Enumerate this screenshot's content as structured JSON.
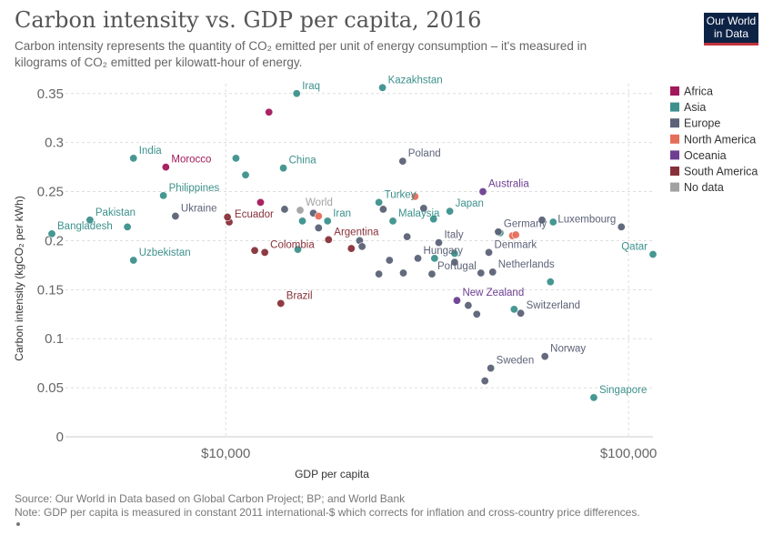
{
  "header": {
    "title": "Carbon intensity vs. GDP per capita, 2016",
    "subtitle": "Carbon intensity represents the quantity of CO₂ emitted per unit of energy consumption – it's measured in kilograms of CO₂ emitted per kilowatt-hour of energy.",
    "logo_line1": "Our World",
    "logo_line2": "in Data"
  },
  "footer": {
    "source": "Source: Our World in Data based on Global Carbon Project; BP; and World Bank",
    "note": "Note: GDP per capita is measured in constant 2011 international-$ which corrects for inflation and cross-country price differences."
  },
  "chart_data": {
    "type": "scatter",
    "title": "Carbon intensity vs. GDP per capita, 2016",
    "xlabel": "GDP per capita",
    "ylabel": "Carbon intensity (kgCO₂ per kWh)",
    "x_scale": "log",
    "xlim": [
      4000,
      115000
    ],
    "ylim": [
      0,
      0.36
    ],
    "x_ticks": [
      {
        "value": 10000,
        "label": "$10,000"
      },
      {
        "value": 100000,
        "label": "$100,000"
      }
    ],
    "y_ticks": [
      {
        "value": 0,
        "label": "0"
      },
      {
        "value": 0.05,
        "label": "0.05"
      },
      {
        "value": 0.1,
        "label": "0.1"
      },
      {
        "value": 0.15,
        "label": "0.15"
      },
      {
        "value": 0.2,
        "label": "0.2"
      },
      {
        "value": 0.25,
        "label": "0.25"
      },
      {
        "value": 0.3,
        "label": "0.3"
      },
      {
        "value": 0.35,
        "label": "0.35"
      }
    ],
    "grid": true,
    "legend_position": "right",
    "series": [
      {
        "name": "Africa",
        "color": "#a2195b",
        "points": [
          {
            "x": 7100,
            "y": 0.275,
            "label": "Morocco"
          },
          {
            "x": 12800,
            "y": 0.331
          },
          {
            "x": 12200,
            "y": 0.239
          }
        ]
      },
      {
        "name": "Asia",
        "color": "#3c918c",
        "points": [
          {
            "x": 15000,
            "y": 0.35,
            "label": "Iraq"
          },
          {
            "x": 24500,
            "y": 0.356,
            "label": "Kazakhstan"
          },
          {
            "x": 5900,
            "y": 0.284,
            "label": "India"
          },
          {
            "x": 10600,
            "y": 0.284
          },
          {
            "x": 11200,
            "y": 0.267
          },
          {
            "x": 13900,
            "y": 0.274,
            "label": "China"
          },
          {
            "x": 7000,
            "y": 0.246,
            "label": "Philippines"
          },
          {
            "x": 24000,
            "y": 0.239,
            "label": "Turkey"
          },
          {
            "x": 36000,
            "y": 0.23,
            "label": "Japan"
          },
          {
            "x": 15500,
            "y": 0.22
          },
          {
            "x": 17900,
            "y": 0.22,
            "label": "Iran"
          },
          {
            "x": 26000,
            "y": 0.22,
            "label": "Malaysia"
          },
          {
            "x": 32800,
            "y": 0.222
          },
          {
            "x": 4600,
            "y": 0.221,
            "label": "Pakistan"
          },
          {
            "x": 5700,
            "y": 0.214
          },
          {
            "x": 3700,
            "y": 0.207,
            "label": "Bangladesh"
          },
          {
            "x": 5900,
            "y": 0.18,
            "label": "Uzbekistan"
          },
          {
            "x": 15100,
            "y": 0.191
          },
          {
            "x": 37000,
            "y": 0.187
          },
          {
            "x": 33000,
            "y": 0.182
          },
          {
            "x": 115000,
            "y": 0.186,
            "label": "Qatar"
          },
          {
            "x": 65000,
            "y": 0.219
          },
          {
            "x": 48000,
            "y": 0.208
          },
          {
            "x": 52000,
            "y": 0.13
          },
          {
            "x": 64000,
            "y": 0.158
          },
          {
            "x": 82000,
            "y": 0.04,
            "label": "Singapore"
          }
        ]
      },
      {
        "name": "Europe",
        "color": "#5c6277",
        "points": [
          {
            "x": 7500,
            "y": 0.225,
            "label": "Ukraine"
          },
          {
            "x": 14000,
            "y": 0.232
          },
          {
            "x": 16500,
            "y": 0.228
          },
          {
            "x": 17000,
            "y": 0.213
          },
          {
            "x": 27500,
            "y": 0.281,
            "label": "Poland"
          },
          {
            "x": 21500,
            "y": 0.2
          },
          {
            "x": 21800,
            "y": 0.194
          },
          {
            "x": 24000,
            "y": 0.166
          },
          {
            "x": 24600,
            "y": 0.232
          },
          {
            "x": 25500,
            "y": 0.18
          },
          {
            "x": 27600,
            "y": 0.167
          },
          {
            "x": 28200,
            "y": 0.204
          },
          {
            "x": 30000,
            "y": 0.182,
            "label": "Hungary"
          },
          {
            "x": 31000,
            "y": 0.233
          },
          {
            "x": 32500,
            "y": 0.166,
            "label": "Portugal"
          },
          {
            "x": 33800,
            "y": 0.198,
            "label": "Italy"
          },
          {
            "x": 37000,
            "y": 0.178
          },
          {
            "x": 40000,
            "y": 0.134
          },
          {
            "x": 42000,
            "y": 0.125
          },
          {
            "x": 43000,
            "y": 0.167
          },
          {
            "x": 45000,
            "y": 0.188,
            "label": "Denmark"
          },
          {
            "x": 46000,
            "y": 0.168,
            "label": "Netherlands"
          },
          {
            "x": 47500,
            "y": 0.209,
            "label": "Germany"
          },
          {
            "x": 44000,
            "y": 0.057
          },
          {
            "x": 45500,
            "y": 0.07,
            "label": "Sweden"
          },
          {
            "x": 54000,
            "y": 0.126,
            "label": "Switzerland"
          },
          {
            "x": 61000,
            "y": 0.221
          },
          {
            "x": 62000,
            "y": 0.082,
            "label": "Norway"
          },
          {
            "x": 96000,
            "y": 0.214,
            "label": "Luxembourg"
          }
        ]
      },
      {
        "name": "North America",
        "color": "#e56e5a",
        "points": [
          {
            "x": 17000,
            "y": 0.225
          },
          {
            "x": 29500,
            "y": 0.245
          },
          {
            "x": 51500,
            "y": 0.205
          },
          {
            "x": 52500,
            "y": 0.206
          }
        ]
      },
      {
        "name": "Oceania",
        "color": "#6d3e91",
        "points": [
          {
            "x": 43500,
            "y": 0.25,
            "label": "Australia"
          },
          {
            "x": 37500,
            "y": 0.139,
            "label": "New Zealand"
          }
        ]
      },
      {
        "name": "South America",
        "color": "#883039",
        "points": [
          {
            "x": 10200,
            "y": 0.219,
            "label": "Ecuador"
          },
          {
            "x": 10100,
            "y": 0.224
          },
          {
            "x": 11800,
            "y": 0.19
          },
          {
            "x": 12500,
            "y": 0.188,
            "label": "Colombia"
          },
          {
            "x": 18000,
            "y": 0.201,
            "label": "Argentina"
          },
          {
            "x": 20500,
            "y": 0.192
          },
          {
            "x": 13700,
            "y": 0.136,
            "label": "Brazil"
          }
        ]
      },
      {
        "name": "No data",
        "color": "#a2a2a2",
        "points": [
          {
            "x": 15300,
            "y": 0.231,
            "label": "World"
          }
        ]
      }
    ]
  }
}
